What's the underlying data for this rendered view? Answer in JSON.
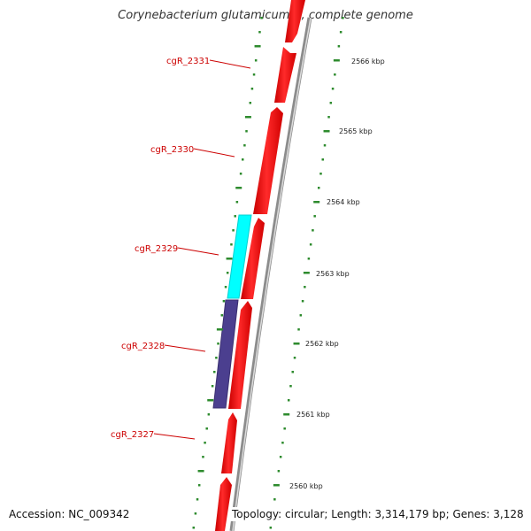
{
  "title": "Corynebacterium glutamicum R, complete genome",
  "accession": "Accession: NC_009342",
  "topology": "Topology: circular; Length: 3,314,179 bp; Genes: 3,128",
  "colors": {
    "forward_gene": "#ff0000",
    "gene_cyan": "#00ffff",
    "gene_purple": "#4b3f8f",
    "label": "#cc0000",
    "tick": "#2e8b2e",
    "backbone": "#8c8c8c"
  },
  "genes": [
    {
      "id": "cgR_2327",
      "label": "cgR_2327"
    },
    {
      "id": "cgR_2328",
      "label": "cgR_2328"
    },
    {
      "id": "cgR_2329",
      "label": "cgR_2329"
    },
    {
      "id": "cgR_2330",
      "label": "cgR_2330"
    },
    {
      "id": "cgR_2331",
      "label": "cgR_2331"
    }
  ],
  "scale_labels": [
    "2566 kbp",
    "2565 kbp",
    "2564 kbp",
    "2563 kbp",
    "2562 kbp",
    "2561 kbp",
    "2560 kbp"
  ]
}
